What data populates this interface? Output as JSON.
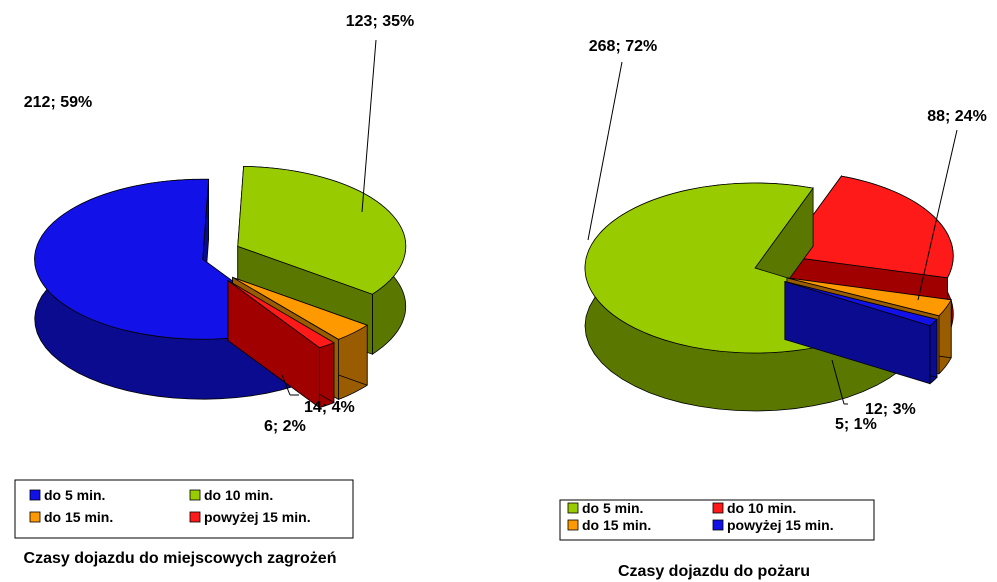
{
  "chart_data": [
    {
      "type": "pie",
      "title": "Czasy dojazdu do miejscowych zagrożeń",
      "categories": [
        "do 5 min.",
        "do 10 min.",
        "do 15 min.",
        "powyżej 15 min."
      ],
      "values": [
        212,
        123,
        14,
        6
      ],
      "data_labels": [
        "212; 59%",
        "123; 35%",
        "14; 4%",
        "6; 2%"
      ],
      "legend_labels": [
        "do 5 min.",
        "do 10 min.",
        "do 15 min.",
        "powyżej 15 min."
      ],
      "colors": [
        "#1212e8",
        "#99cc00",
        "#ff9900",
        "#ff1a1a"
      ],
      "side_colors": [
        "#0b0b90",
        "#5a7800",
        "#9a5c00",
        "#a00000"
      ],
      "legend_position": "bottom"
    },
    {
      "type": "pie",
      "title": "Czasy dojazdu do pożaru",
      "categories": [
        "do 5 min.",
        "do 10 min.",
        "do 15 min.",
        "powyżej 15 min."
      ],
      "values": [
        268,
        88,
        12,
        5
      ],
      "data_labels": [
        "268; 72%",
        "88; 24%",
        "12; 3%",
        "5; 1%"
      ],
      "legend_labels": [
        "do 5 min.",
        "do 10 min.",
        "do 15 min.",
        "powyżej 15 min."
      ],
      "colors": [
        "#99cc00",
        "#ff1a1a",
        "#ff9900",
        "#1212e8"
      ],
      "side_colors": [
        "#5a7800",
        "#a00000",
        "#9a5c00",
        "#0b0b90"
      ],
      "legend_position": "bottom"
    }
  ]
}
